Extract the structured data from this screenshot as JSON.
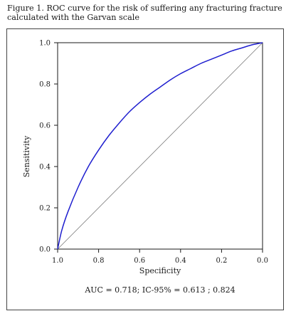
{
  "caption": "Figure 1. ROC curve for the risk of suffering any fracturing fracture calculated with the Garvan scale",
  "chart_data": {
    "type": "line",
    "title": "",
    "xlabel": "Specificity",
    "ylabel": "Sensitivity",
    "xlim": [
      1.0,
      0.0
    ],
    "ylim": [
      0.0,
      1.0
    ],
    "x_ticks": [
      "1.0",
      "0.8",
      "0.6",
      "0.4",
      "0.2",
      "0.0"
    ],
    "y_ticks": [
      "0.0",
      "0.2",
      "0.4",
      "0.6",
      "0.8",
      "1.0"
    ],
    "grid": false,
    "annotation": "AUC = 0.718; IC-95% = 0.613 ; 0.824",
    "series": [
      {
        "role": "roc",
        "color": "#1f1fcf",
        "x": [
          1.0,
          0.98,
          0.95,
          0.9,
          0.85,
          0.8,
          0.75,
          0.7,
          0.65,
          0.6,
          0.55,
          0.5,
          0.45,
          0.4,
          0.35,
          0.3,
          0.25,
          0.2,
          0.15,
          0.1,
          0.05,
          0.0
        ],
        "y": [
          0.0,
          0.09,
          0.18,
          0.3,
          0.4,
          0.48,
          0.55,
          0.61,
          0.665,
          0.71,
          0.75,
          0.785,
          0.82,
          0.85,
          0.875,
          0.9,
          0.92,
          0.94,
          0.96,
          0.975,
          0.99,
          1.0
        ]
      },
      {
        "role": "reference",
        "color": "#7a7a7a",
        "x": [
          1.0,
          0.0
        ],
        "y": [
          0.0,
          1.0
        ]
      }
    ]
  }
}
